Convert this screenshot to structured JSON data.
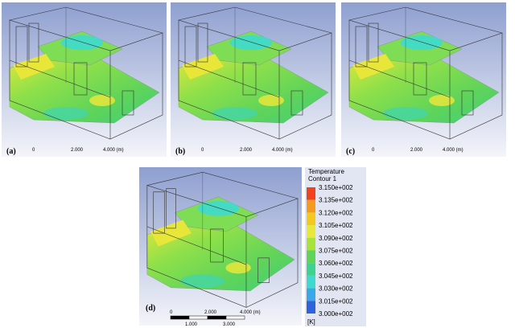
{
  "panels": [
    {
      "label": "(a)",
      "scale": [
        "0",
        "2.000",
        "4.000 (m)"
      ]
    },
    {
      "label": "(b)",
      "scale": [
        "0",
        "2.000",
        "4.000 (m)"
      ]
    },
    {
      "label": "(c)",
      "scale": [
        "0",
        "2.000",
        "4.000 (m)"
      ]
    },
    {
      "label": "(d)",
      "scale": [
        "0",
        "2.000",
        "4.000 (m)",
        "1.000",
        "3.000"
      ]
    }
  ],
  "legend": {
    "title": "Temperature",
    "subtitle": "Contour 1",
    "levels": [
      "3.150e+002",
      "3.135e+002",
      "3.120e+002",
      "3.105e+002",
      "3.090e+002",
      "3.075e+002",
      "3.060e+002",
      "3.045e+002",
      "3.030e+002",
      "3.015e+002",
      "3.000e+002"
    ],
    "unit": "[K]"
  }
}
